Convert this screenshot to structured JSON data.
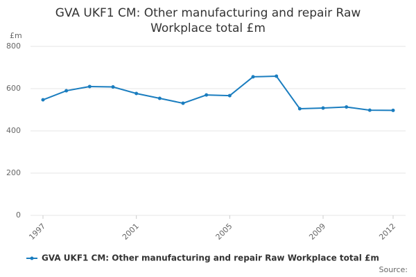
{
  "chart_data": {
    "type": "line",
    "title": "GVA UKF1 CM: Other manufacturing and repair Raw Workplace total £m",
    "y_unit": "£m",
    "source": "Source:",
    "x": [
      1997,
      1998,
      1999,
      2000,
      2001,
      2002,
      2003,
      2004,
      2005,
      2006,
      2007,
      2008,
      2009,
      2010,
      2011,
      2012
    ],
    "series": [
      {
        "name": "GVA UKF1 CM: Other manufacturing and repair Raw Workplace total £m",
        "color": "#1a7dbf",
        "values": [
          547,
          590,
          610,
          608,
          577,
          554,
          531,
          570,
          567,
          656,
          659,
          505,
          508,
          513,
          498,
          497
        ]
      }
    ],
    "xlim": [
      1997,
      2012
    ],
    "xticks": [
      1997,
      2001,
      2005,
      2009,
      2012
    ],
    "ylim": [
      0,
      800
    ],
    "yticks": [
      0,
      200,
      400,
      600,
      800
    ],
    "grid": true
  }
}
